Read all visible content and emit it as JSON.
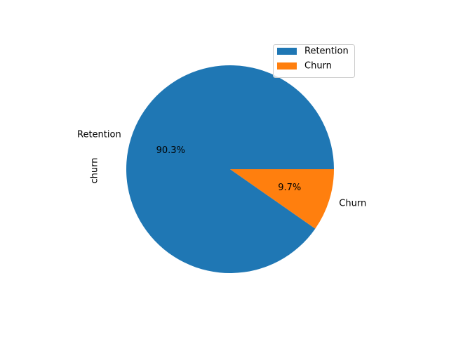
{
  "chart_data": {
    "type": "pie",
    "categories": [
      "Retention",
      "Churn"
    ],
    "values": [
      90.3,
      9.7
    ],
    "value_labels": [
      "90.3%",
      "9.7%"
    ],
    "colors": [
      "#1f77b4",
      "#ff7f0e"
    ],
    "ylabel": "churn",
    "legend": {
      "entries": [
        "Retention",
        "Churn"
      ],
      "placement": "upper-right"
    },
    "start_angle_deg": 0,
    "direction": "counterclockwise"
  }
}
